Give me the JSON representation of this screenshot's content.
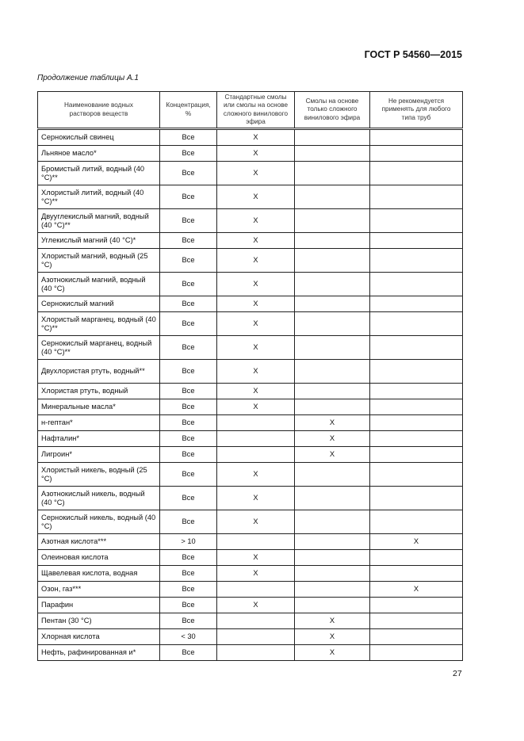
{
  "header": {
    "doc_code": "ГОСТ Р 54560—2015"
  },
  "caption": "Продолжение таблицы А.1",
  "table": {
    "columns": [
      "Наименование водных растворов веществ",
      "Концентрация, %",
      "Стандартные смолы или смолы на основе сложного винилового эфира",
      "Смолы на основе только сложного винилового эфира",
      "Не рекомендуется применять для любого типа труб"
    ],
    "rows": [
      {
        "name": "Сернокислый свинец",
        "conc": "Все",
        "c3": "X",
        "c4": "",
        "c5": ""
      },
      {
        "name": "Льняное масло*",
        "conc": "Все",
        "c3": "X",
        "c4": "",
        "c5": ""
      },
      {
        "name": "Бромистый литий, водный (40 °С)**",
        "conc": "Все",
        "c3": "X",
        "c4": "",
        "c5": "",
        "two": true
      },
      {
        "name": "Хлористый литий, водный (40 °С)**",
        "conc": "Все",
        "c3": "X",
        "c4": "",
        "c5": "",
        "two": true
      },
      {
        "name": "Двууглекислый магний, водный (40 °С)**",
        "conc": "Все",
        "c3": "X",
        "c4": "",
        "c5": "",
        "two": true
      },
      {
        "name": "Углекислый магний (40 °С)*",
        "conc": "Все",
        "c3": "X",
        "c4": "",
        "c5": ""
      },
      {
        "name": "Хлористый магний, водный (25 °С)",
        "conc": "Все",
        "c3": "X",
        "c4": "",
        "c5": "",
        "two": true
      },
      {
        "name": "Азотнокислый магний, водный (40 °С)",
        "conc": "Все",
        "c3": "X",
        "c4": "",
        "c5": "",
        "two": true
      },
      {
        "name": "Сернокислый магний",
        "conc": "Все",
        "c3": "X",
        "c4": "",
        "c5": ""
      },
      {
        "name": "Хлористый марганец, водный (40 °С)**",
        "conc": "Все",
        "c3": "X",
        "c4": "",
        "c5": "",
        "two": true
      },
      {
        "name": "Сернокислый марганец, водный (40 °С)**",
        "conc": "Все",
        "c3": "X",
        "c4": "",
        "c5": "",
        "two": true
      },
      {
        "name": "Двухлористая ртуть, водный**",
        "conc": "Все",
        "c3": "X",
        "c4": "",
        "c5": "",
        "two": true
      },
      {
        "name": "Хлористая ртуть, водный",
        "conc": "Все",
        "c3": "X",
        "c4": "",
        "c5": ""
      },
      {
        "name": "Минеральные масла*",
        "conc": "Все",
        "c3": "X",
        "c4": "",
        "c5": ""
      },
      {
        "name": "н-гептан*",
        "conc": "Все",
        "c3": "",
        "c4": "X",
        "c5": ""
      },
      {
        "name": "Нафталин*",
        "conc": "Все",
        "c3": "",
        "c4": "X",
        "c5": ""
      },
      {
        "name": "Лигроин*",
        "conc": "Все",
        "c3": "",
        "c4": "X",
        "c5": ""
      },
      {
        "name": "Хлористый никель, водный (25 °С)",
        "conc": "Все",
        "c3": "X",
        "c4": "",
        "c5": "",
        "two": true
      },
      {
        "name": "Азотнокислый никель, водный (40 °С)",
        "conc": "Все",
        "c3": "X",
        "c4": "",
        "c5": "",
        "two": true
      },
      {
        "name": "Сернокислый никель, водный (40 °С)",
        "conc": "Все",
        "c3": "X",
        "c4": "",
        "c5": "",
        "two": true
      },
      {
        "name": "Азотная кислота***",
        "conc": "> 10",
        "c3": "",
        "c4": "",
        "c5": "X"
      },
      {
        "name": "Олеиновая кислота",
        "conc": "Все",
        "c3": "X",
        "c4": "",
        "c5": ""
      },
      {
        "name": "Щавелевая кислота, водная",
        "conc": "Все",
        "c3": "X",
        "c4": "",
        "c5": ""
      },
      {
        "name": "Озон, газ***",
        "conc": "Все",
        "c3": "",
        "c4": "",
        "c5": "X"
      },
      {
        "name": "Парафин",
        "conc": "Все",
        "c3": "X",
        "c4": "",
        "c5": ""
      },
      {
        "name": "Пентан (30 °С)",
        "conc": "Все",
        "c3": "",
        "c4": "X",
        "c5": ""
      },
      {
        "name": "Хлорная кислота",
        "conc": "< 30",
        "c3": "",
        "c4": "X",
        "c5": ""
      },
      {
        "name": "Нефть, рафинированная и*",
        "conc": "Все",
        "c3": "",
        "c4": "X",
        "c5": ""
      }
    ]
  },
  "footer": {
    "page_number": "27"
  }
}
